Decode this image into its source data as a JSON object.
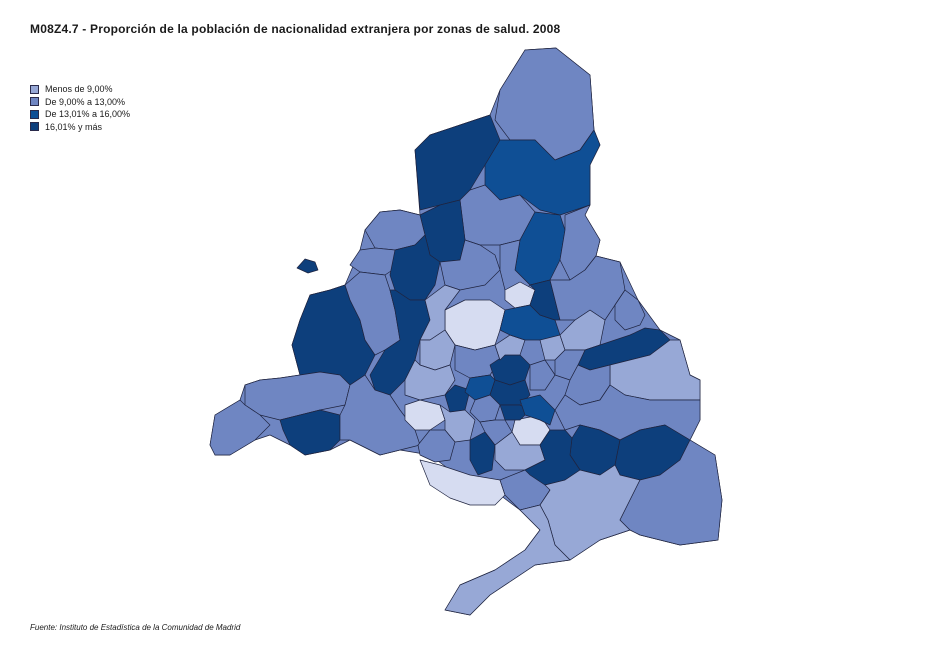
{
  "title": "M08Z4.7 - Proporción de la población de nacionalidad extranjera por zonas de salud. 2008",
  "legend": {
    "items": [
      {
        "label": "Menos de 9,00%",
        "color": "#97a8d6"
      },
      {
        "label": "De 9,00% a 13,00%",
        "color": "#6f86c2"
      },
      {
        "label": "De 13,01% a 16,00%",
        "color": "#0f4f95"
      },
      {
        "label": "16,01% y más",
        "color": "#0d3f7c"
      }
    ]
  },
  "colors": {
    "lightest": "#d6dcf1",
    "light": "#97a8d6",
    "medium": "#6f86c2",
    "dark": "#0f4f95",
    "darkest": "#0d3f7c",
    "border": "#1f2440"
  },
  "source": "Fuente: Instituto de Estadística de la Comunidad de Madrid"
}
